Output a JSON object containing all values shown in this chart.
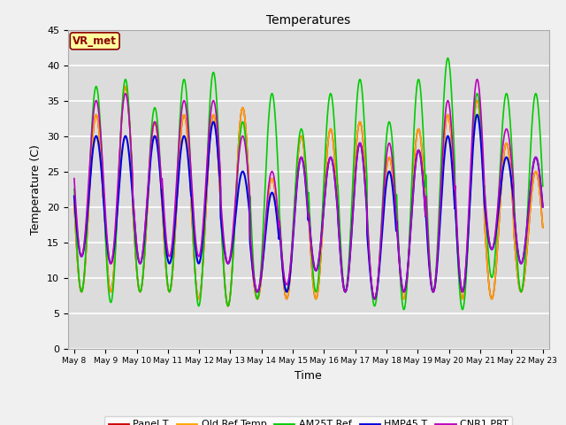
{
  "title": "Temperatures",
  "xlabel": "Time",
  "ylabel": "Temperature (C)",
  "ylim": [
    0,
    45
  ],
  "x_tick_labels": [
    "May 8",
    "May 9",
    "May 10",
    "May 11",
    "May 12",
    "May 13",
    "May 14",
    "May 15",
    "May 16",
    "May 17",
    "May 18",
    "May 19",
    "May 20",
    "May 21",
    "May 22",
    "May 23"
  ],
  "annotation_text": "VR_met",
  "annotation_color": "#8B0000",
  "annotation_bg": "#FFFFA0",
  "fig_bg": "#F0F0F0",
  "plot_bg": "#DCDCDC",
  "grid_color": "#FFFFFF",
  "series": [
    {
      "name": "Panel T",
      "color": "#CC0000",
      "lw": 1.2,
      "day_min": [
        8.0,
        8.0,
        8.0,
        8.0,
        7.0,
        6.0,
        7.0,
        7.0,
        7.0,
        8.0,
        7.0,
        7.0,
        8.0,
        7.0,
        7.0,
        8.0
      ],
      "day_max": [
        33.0,
        37.0,
        32.0,
        33.0,
        33.0,
        34.0,
        24.0,
        30.0,
        31.0,
        32.0,
        27.0,
        31.0,
        33.0,
        35.0,
        29.0,
        25.0
      ]
    },
    {
      "name": "Old Ref Temp",
      "color": "#FFA500",
      "lw": 1.2,
      "day_min": [
        8.0,
        8.0,
        8.0,
        8.0,
        7.0,
        6.0,
        7.0,
        7.0,
        7.0,
        8.0,
        7.0,
        7.0,
        8.0,
        7.0,
        7.0,
        8.0
      ],
      "day_max": [
        33.0,
        37.0,
        32.0,
        33.0,
        33.0,
        34.0,
        24.0,
        30.0,
        31.0,
        32.0,
        27.0,
        31.0,
        33.0,
        35.0,
        29.0,
        25.0
      ]
    },
    {
      "name": "AM25T Ref",
      "color": "#00CC00",
      "lw": 1.2,
      "day_min": [
        8.0,
        6.5,
        8.0,
        8.0,
        6.0,
        6.0,
        7.0,
        8.0,
        8.0,
        8.0,
        6.0,
        5.5,
        8.0,
        5.5,
        10.0,
        8.0
      ],
      "day_max": [
        37.0,
        38.0,
        34.0,
        38.0,
        39.0,
        32.0,
        36.0,
        31.0,
        36.0,
        38.0,
        32.0,
        38.0,
        41.0,
        36.0,
        36.0,
        36.0
      ]
    },
    {
      "name": "HMP45 T",
      "color": "#0000DD",
      "lw": 1.5,
      "day_min": [
        13.0,
        12.0,
        12.0,
        12.0,
        12.0,
        12.0,
        8.0,
        8.0,
        11.0,
        8.0,
        7.0,
        8.0,
        8.0,
        8.0,
        14.0,
        12.0
      ],
      "day_max": [
        30.0,
        30.0,
        30.0,
        30.0,
        32.0,
        25.0,
        22.0,
        27.0,
        27.0,
        29.0,
        25.0,
        28.0,
        30.0,
        33.0,
        27.0,
        27.0
      ]
    },
    {
      "name": "CNR1 PRT",
      "color": "#BB00BB",
      "lw": 1.2,
      "day_min": [
        13.0,
        12.0,
        12.0,
        13.0,
        13.0,
        12.0,
        8.0,
        9.0,
        11.0,
        8.0,
        7.0,
        8.0,
        8.0,
        8.0,
        14.0,
        12.0
      ],
      "day_max": [
        35.0,
        36.0,
        32.0,
        35.0,
        35.0,
        30.0,
        25.0,
        27.0,
        27.0,
        29.0,
        29.0,
        28.0,
        35.0,
        38.0,
        31.0,
        27.0
      ]
    }
  ]
}
